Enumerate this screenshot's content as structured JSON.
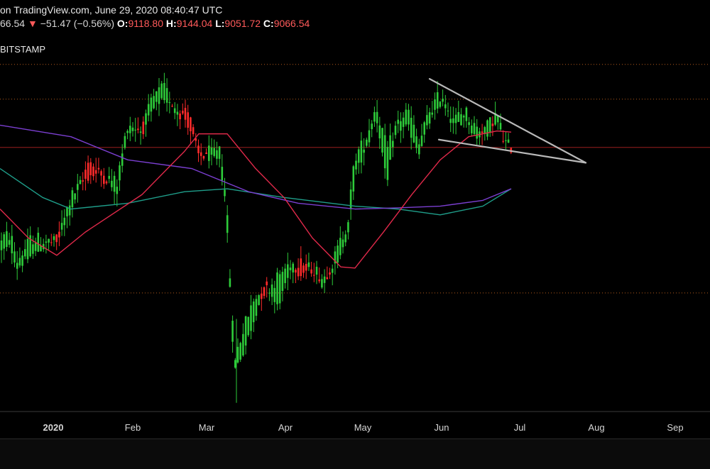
{
  "header": {
    "published_text": "on TradingView.com, June 29, 2020 08:40:47 UTC",
    "last_price": "66.54",
    "change_arrow": "▼",
    "change": "−51.47 (−0.56%)",
    "open_label": "O:",
    "open": "9118.80",
    "high_label": "H:",
    "high": "9144.04",
    "low_label": "L:",
    "low": "9051.72",
    "close_label": "C:",
    "close": "9066.54"
  },
  "exchange": "BITSTAMP",
  "colors": {
    "up": "#2ecc3a",
    "down": "#ff2b2b",
    "ma_fast": "#e0294a",
    "ma_mid": "#7b3fd1",
    "ma_slow": "#1f9e8a",
    "trendline": "#b9b9b9",
    "hline_dotted": "#b35a1a",
    "hline_solid": "#9a1f1f"
  },
  "chart_data": {
    "type": "candlestick",
    "x_ticks": [
      "2020",
      "Feb",
      "Mar",
      "Apr",
      "May",
      "Jun",
      "Jul",
      "Aug",
      "Sep"
    ],
    "y_range": [
      4500,
      11000
    ],
    "horizontal_levels": [
      {
        "value": 10500,
        "style": "dotted"
      },
      {
        "value": 9900,
        "style": "dotted"
      },
      {
        "value": 9065,
        "style": "solid"
      },
      {
        "value": 6550,
        "style": "dotted"
      }
    ],
    "anchors": [
      [
        0,
        7250,
        7500
      ],
      [
        15,
        7350,
        7550
      ],
      [
        24,
        7000,
        7100
      ],
      [
        45,
        7200,
        7500
      ],
      [
        80,
        7500,
        7400
      ],
      [
        100,
        8000,
        8200
      ],
      [
        125,
        8800,
        8600
      ],
      [
        140,
        8700,
        8600
      ],
      [
        165,
        8300,
        8450
      ],
      [
        180,
        9300,
        9500
      ],
      [
        200,
        9400,
        9350
      ],
      [
        215,
        9700,
        9900
      ],
      [
        230,
        9950,
        10100
      ],
      [
        245,
        9700,
        9800
      ],
      [
        265,
        9700,
        9500
      ],
      [
        280,
        9000,
        8900
      ],
      [
        300,
        8850,
        9000
      ],
      [
        310,
        8800,
        9100
      ],
      [
        318,
        8100,
        8300
      ],
      [
        330,
        5200,
        5400
      ],
      [
        345,
        5600,
        6000
      ],
      [
        360,
        6200,
        6500
      ],
      [
        375,
        6700,
        6600
      ],
      [
        390,
        6300,
        6800
      ],
      [
        410,
        6900,
        7100
      ],
      [
        425,
        7100,
        6900
      ],
      [
        440,
        6900,
        7000
      ],
      [
        455,
        6700,
        6800
      ],
      [
        470,
        7000,
        7100
      ],
      [
        490,
        7500,
        7800
      ],
      [
        500,
        8600,
        8900
      ],
      [
        515,
        9000,
        9200
      ],
      [
        530,
        9600,
        9800
      ],
      [
        545,
        8500,
        9000
      ],
      [
        560,
        9400,
        9500
      ],
      [
        575,
        9400,
        9700
      ],
      [
        590,
        9000,
        9100
      ],
      [
        605,
        9500,
        9700
      ],
      [
        622,
        9850,
        10000
      ],
      [
        640,
        9400,
        9550
      ],
      [
        655,
        9600,
        9700
      ],
      [
        670,
        9250,
        9400
      ],
      [
        685,
        9300,
        9400
      ],
      [
        700,
        9550,
        9650
      ],
      [
        710,
        9200,
        9150
      ],
      [
        720,
        9050,
        9070
      ]
    ],
    "ma_fast": [
      [
        0,
        8000
      ],
      [
        40,
        7500
      ],
      [
        80,
        7200
      ],
      [
        120,
        7600
      ],
      [
        200,
        8250
      ],
      [
        260,
        9000
      ],
      [
        280,
        9300
      ],
      [
        320,
        9300
      ],
      [
        360,
        8700
      ],
      [
        400,
        8200
      ],
      [
        440,
        7500
      ],
      [
        480,
        7000
      ],
      [
        500,
        6980
      ],
      [
        540,
        7600
      ],
      [
        580,
        8250
      ],
      [
        620,
        8850
      ],
      [
        660,
        9250
      ],
      [
        700,
        9350
      ],
      [
        720,
        9330
      ]
    ],
    "ma_mid": [
      [
        0,
        9450
      ],
      [
        100,
        9250
      ],
      [
        180,
        8850
      ],
      [
        270,
        8700
      ],
      [
        350,
        8300
      ],
      [
        420,
        8100
      ],
      [
        500,
        8000
      ],
      [
        560,
        8020
      ],
      [
        620,
        8050
      ],
      [
        680,
        8150
      ],
      [
        720,
        8350
      ]
    ],
    "ma_slow": [
      [
        0,
        8700
      ],
      [
        60,
        8200
      ],
      [
        100,
        8000
      ],
      [
        180,
        8100
      ],
      [
        260,
        8300
      ],
      [
        320,
        8350
      ],
      [
        400,
        8200
      ],
      [
        500,
        8050
      ],
      [
        560,
        8000
      ],
      [
        620,
        7900
      ],
      [
        680,
        8050
      ],
      [
        720,
        8350
      ]
    ],
    "trendlines": [
      {
        "from": [
          605,
          10250
        ],
        "to": [
          825,
          8800
        ]
      },
      {
        "from": [
          618,
          9200
        ],
        "to": [
          825,
          8800
        ]
      }
    ],
    "timeline": [
      0,
      735
    ]
  }
}
